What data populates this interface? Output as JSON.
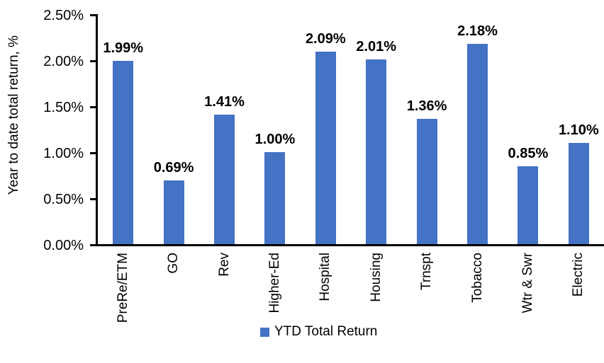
{
  "chart_data": {
    "type": "bar",
    "title": "",
    "xlabel": "",
    "ylabel": "Year to date total return, %",
    "categories": [
      "PreRe/ETM",
      "GO",
      "Rev",
      "Higher-Ed",
      "Hospital",
      "Housing",
      "Trnspt",
      "Tobacco",
      "Wtr & Swr",
      "Electric"
    ],
    "series": [
      {
        "name": "YTD Total Return",
        "values": [
          1.99,
          0.69,
          1.41,
          1.0,
          2.09,
          2.01,
          1.36,
          2.18,
          0.85,
          1.1
        ],
        "data_labels": [
          "1.99%",
          "0.69%",
          "1.41%",
          "1.00%",
          "2.09%",
          "2.01%",
          "1.36%",
          "2.18%",
          "0.85%",
          "1.10%"
        ],
        "color": "#4472C4"
      }
    ],
    "ylim": [
      0,
      2.5
    ],
    "y_ticks": [
      {
        "value": 0.0,
        "label": "0.00%"
      },
      {
        "value": 0.5,
        "label": "0.50%"
      },
      {
        "value": 1.0,
        "label": "1.00%"
      },
      {
        "value": 1.5,
        "label": "1.50%"
      },
      {
        "value": 2.0,
        "label": "2.00%"
      },
      {
        "value": 2.5,
        "label": "2.50%"
      }
    ],
    "grid": false,
    "legend": {
      "position": "bottom",
      "entries": [
        {
          "label": "YTD Total Return",
          "color": "#4472C4"
        }
      ]
    },
    "colors": {
      "bar": "#4472C4",
      "axis": "#000000",
      "text": "#000000",
      "background": "#FFFFFF"
    }
  }
}
